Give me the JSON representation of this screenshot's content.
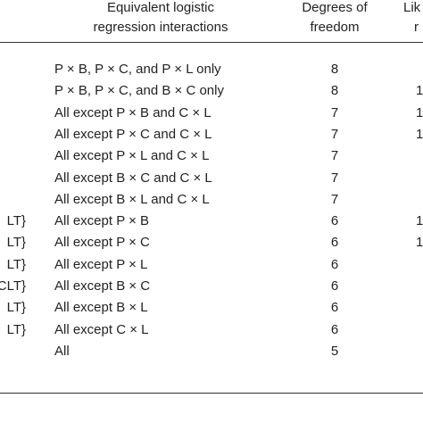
{
  "table": {
    "headers": {
      "interactions": [
        "Equivalent logistic",
        "regression interactions"
      ],
      "df": [
        "Degrees of",
        "freedom"
      ],
      "lik": [
        "Lik",
        "r"
      ]
    },
    "rows": [
      {
        "left": "",
        "interactions": "P × B, P × C, and P × L only",
        "df": "8",
        "lik": ""
      },
      {
        "left": "",
        "interactions": "P × B, P × C, and B × C only",
        "df": "8",
        "lik": "1"
      },
      {
        "left": "",
        "interactions": "All except P × B and C × L",
        "df": "7",
        "lik": "1"
      },
      {
        "left": "",
        "interactions": "All except P × C and C × L",
        "df": "7",
        "lik": "1"
      },
      {
        "left": "",
        "interactions": "All except P × L and C × L",
        "df": "7",
        "lik": ""
      },
      {
        "left": "",
        "interactions": "All except B × C and C × L",
        "df": "7",
        "lik": ""
      },
      {
        "left": "",
        "interactions": "All except B × L and C × L",
        "df": "7",
        "lik": ""
      },
      {
        "left": "LT}",
        "interactions": "All except P × B",
        "df": "6",
        "lik": "1"
      },
      {
        "left": "LT}",
        "interactions": "All except P × C",
        "df": "6",
        "lik": "1"
      },
      {
        "left": "LT}",
        "interactions": "All except P × L",
        "df": "6",
        "lik": ""
      },
      {
        "left": "CLT}",
        "interactions": "All except B × C",
        "df": "6",
        "lik": ""
      },
      {
        "left": "LT}",
        "interactions": "All except B × L",
        "df": "6",
        "lik": ""
      },
      {
        "left": "LT}",
        "interactions": "All except C × L",
        "df": "6",
        "lik": ""
      },
      {
        "left": "",
        "interactions": "All",
        "df": "5",
        "lik": ""
      }
    ]
  }
}
